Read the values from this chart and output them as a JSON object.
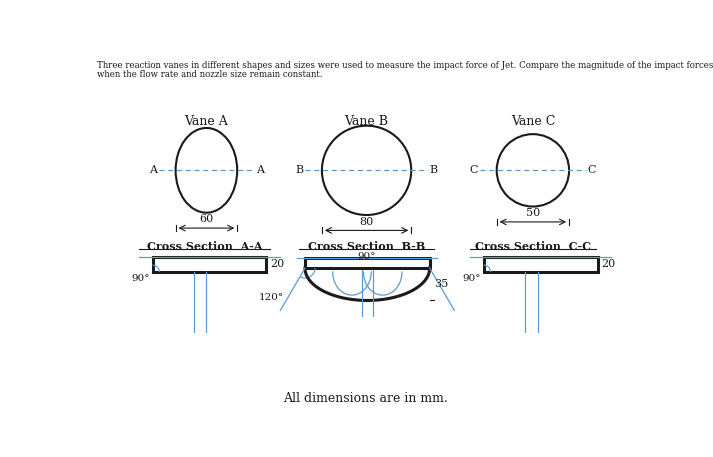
{
  "title_line1": "Three reaction vanes in different shapes and sizes were used to measure the impact force of Jet. Compare the magnitude of the impact forces received by each Vane",
  "title_line2": "when the flow rate and nozzle size remain constant.",
  "vane_a_label": "Vane A",
  "vane_b_label": "Vane B",
  "vane_c_label": "Vane C",
  "dim_a": "60",
  "dim_b": "80",
  "dim_c": "50",
  "cross_a_label": "Cross Section  A-A",
  "cross_b_label": "Cross Section  B-B",
  "cross_c_label": "Cross Section  C-C",
  "angle_90": "90°",
  "angle_120": "120°",
  "dim_20": "20",
  "dim_35": "35",
  "footer": "All dimensions are in mm.",
  "bg_color": "#ffffff",
  "ellipse_color": "#1a1a1a",
  "dim_line_color": "#5b9bd5",
  "cross_section_color": "#1a1a1a",
  "text_color": "#1a1a1a"
}
